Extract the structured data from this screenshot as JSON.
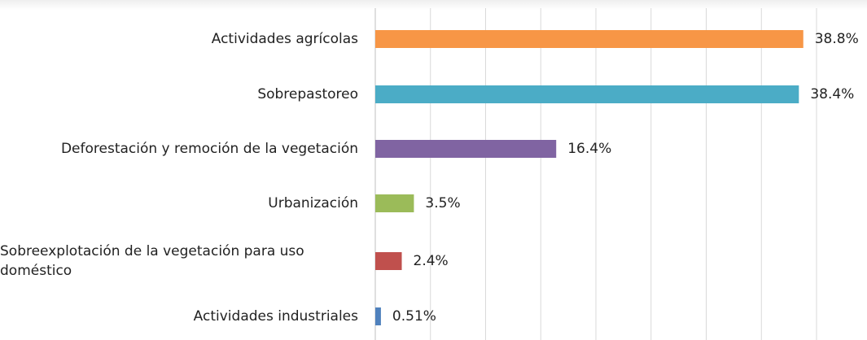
{
  "chart_data": {
    "type": "bar",
    "orientation": "horizontal",
    "categories": [
      "Actividades agrícolas",
      "Sobrepastoreo",
      "Deforestación y remoción de la vegetación",
      "Urbanización",
      "Sobreexplotación de la vegetación para uso doméstico",
      "Actividades industriales"
    ],
    "values": [
      38.8,
      38.4,
      16.4,
      3.5,
      2.4,
      0.51
    ],
    "value_labels": [
      "38.8%",
      "38.4%",
      "16.4%",
      "3.5%",
      "2.4%",
      "0.51%"
    ],
    "colors": [
      "#f79646",
      "#4bacc6",
      "#8064a2",
      "#9bbb59",
      "#c0504d",
      "#4f81bd"
    ],
    "xlim": [
      0,
      40
    ],
    "xticks": [
      0,
      5,
      10,
      15,
      20,
      25,
      30,
      35,
      40
    ],
    "grid": true
  }
}
